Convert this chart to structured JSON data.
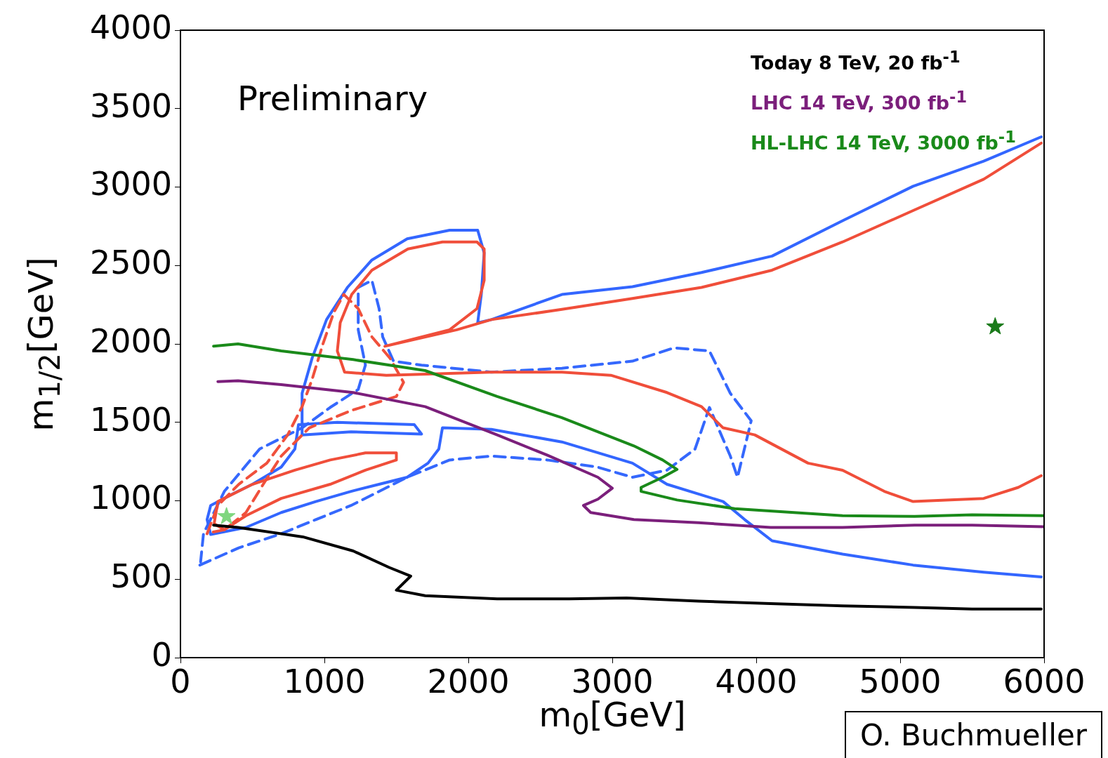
{
  "chart_data": {
    "type": "line",
    "xlabel": "m$_{0}$[GeV]",
    "ylabel": "m$_{1/2}$[GeV]",
    "xlim": [
      0,
      6000
    ],
    "xticks": [
      0,
      1000,
      2000,
      3000,
      4000,
      5000,
      6000
    ],
    "ylim": [
      0,
      4000
    ],
    "yticks": [
      0,
      500,
      1000,
      1500,
      2000,
      2500,
      3000,
      3500,
      4000
    ],
    "grid": false,
    "legend": "top right",
    "marker": "none",
    "annotations": [
      "Preliminary",
      "O. Buchmueller"
    ],
    "series": [
      {
        "name": "Today 8 TeV, 20 fb$^{-1}$",
        "color": "#000000",
        "x": [
          230,
          400,
          850,
          1200,
          1450,
          1600,
          1500,
          1700,
          2200,
          2700,
          3100,
          3600,
          4100,
          4600,
          5100,
          5500,
          5980
        ],
        "values": [
          845,
          830,
          770,
          680,
          575,
          520,
          430,
          395,
          375,
          375,
          380,
          360,
          345,
          330,
          320,
          310,
          310
        ]
      },
      {
        "name": "LHC 14 TeV, 300 fb$^{-1}$",
        "color": "#7b1f7b",
        "x": [
          260,
          400,
          700,
          1200,
          1700,
          2200,
          2550,
          2900,
          3000,
          2900,
          2800,
          2850,
          3150,
          3600,
          4100,
          4600,
          5100,
          5500,
          6000
        ],
        "values": [
          1760,
          1765,
          1740,
          1690,
          1600,
          1420,
          1290,
          1150,
          1080,
          1010,
          970,
          925,
          880,
          860,
          830,
          830,
          845,
          845,
          835
        ]
      },
      {
        "name": "HL-LHC 14 TeV, 3000 fb$^{-1}$",
        "color": "#1a8a1a",
        "x": [
          230,
          400,
          700,
          1200,
          1700,
          2200,
          2650,
          3150,
          3350,
          3450,
          3350,
          3200,
          3200,
          3450,
          3850,
          4600,
          5100,
          5500,
          6000
        ],
        "values": [
          1985,
          2000,
          1955,
          1900,
          1830,
          1665,
          1530,
          1350,
          1260,
          1200,
          1150,
          1085,
          1060,
          1005,
          950,
          905,
          900,
          910,
          905
        ]
      },
      {
        "color": "#f04e3a",
        "x": [
          5980,
          5580,
          5090,
          4600,
          4110,
          3620,
          3140,
          2650,
          2160,
          1920,
          1420,
          1870,
          2060,
          2110,
          2110,
          2060,
          1820,
          1580,
          1330,
          1190,
          1110,
          1090,
          1140,
          1430,
          2160,
          2650,
          2990,
          3380,
          3620,
          3770,
          3990,
          4360,
          4600,
          4890,
          5090,
          5580,
          5820,
          5980,
          null,
          235,
          260,
          500,
          795,
          1040,
          1285,
          1500,
          1500,
          1285,
          1040,
          700,
          455,
          305,
          240
        ],
        "values": [
          3280,
          3050,
          2850,
          2650,
          2470,
          2360,
          2290,
          2220,
          2155,
          2090,
          1985,
          2090,
          2225,
          2405,
          2605,
          2650,
          2650,
          2605,
          2470,
          2315,
          2135,
          1955,
          1820,
          1800,
          1820,
          1820,
          1800,
          1690,
          1600,
          1465,
          1420,
          1240,
          1195,
          1060,
          995,
          1015,
          1085,
          1160,
          null,
          860,
          995,
          1105,
          1195,
          1260,
          1305,
          1305,
          1260,
          1195,
          1105,
          1015,
          905,
          815,
          850
        ]
      },
      {
        "color": "#f0503c",
        "line_style": "dashed",
        "x": [
          185,
          260,
          405,
          600,
          745,
          845,
          915,
          990,
          1065,
          1135,
          1235,
          1330,
          1455,
          1550,
          1500,
          1185,
          895,
          700,
          575,
          455,
          305,
          195
        ],
        "values": [
          790,
          970,
          1105,
          1240,
          1420,
          1600,
          1775,
          2000,
          2200,
          2315,
          2225,
          2045,
          1910,
          1755,
          1665,
          1575,
          1465,
          1285,
          1105,
          925,
          815,
          795
        ]
      },
      {
        "color": "#3366ff",
        "x": [
          5980,
          5580,
          5090,
          4600,
          4110,
          3920,
          3770,
          3380,
          3140,
          2650,
          2160,
          1820,
          1795,
          1720,
          1575,
          1380,
          1185,
          940,
          700,
          455,
          210,
          185,
          210,
          355,
          500,
          700,
          795,
          820,
          1090,
          1625,
          1675,
          1185,
          845,
          845,
          915,
          1015,
          1160,
          1330,
          1575,
          1870,
          2065,
          2110,
          2090,
          2065,
          2160,
          2650,
          3140,
          3620,
          4110,
          4600,
          5090,
          5580,
          5980
        ],
        "values": [
          515,
          545,
          590,
          660,
          745,
          880,
          995,
          1105,
          1240,
          1375,
          1455,
          1465,
          1330,
          1240,
          1150,
          1105,
          1060,
          995,
          925,
          830,
          785,
          880,
          970,
          1040,
          1105,
          1215,
          1330,
          1485,
          1500,
          1485,
          1425,
          1440,
          1420,
          1685,
          1910,
          2155,
          2360,
          2535,
          2670,
          2725,
          2725,
          2580,
          2315,
          2135,
          2155,
          2315,
          2365,
          2455,
          2560,
          2785,
          3005,
          3165,
          3320
        ]
      },
      {
        "color": "#3568fd",
        "line_style": "dashed",
        "x": [
          135,
          405,
          700,
          940,
          1185,
          1575,
          1870,
          2160,
          2550,
          2895,
          3140,
          3380,
          3575,
          3675,
          3820,
          3870,
          3965,
          3820,
          3675,
          3430,
          3140,
          2650,
          2160,
          1675,
          1480,
          1405,
          1380,
          1330,
          1235,
          1235,
          1285,
          1235,
          1040,
          845,
          550,
          305,
          160,
          140
        ],
        "values": [
          590,
          700,
          790,
          880,
          970,
          1150,
          1260,
          1285,
          1260,
          1215,
          1150,
          1195,
          1330,
          1595,
          1285,
          1150,
          1510,
          1685,
          1955,
          1975,
          1890,
          1845,
          1820,
          1865,
          1890,
          2045,
          2225,
          2405,
          2360,
          2090,
          1865,
          1710,
          1595,
          1465,
          1330,
          1060,
          790,
          610
        ]
      },
      {
        "type": "scatter",
        "marker": "star",
        "color": "#1a7a1a",
        "x": [
          5660
        ],
        "values": [
          2110
        ]
      },
      {
        "type": "scatter",
        "marker": "star",
        "color": "#7ed67e",
        "x": [
          320
        ],
        "values": [
          900
        ]
      }
    ]
  }
}
